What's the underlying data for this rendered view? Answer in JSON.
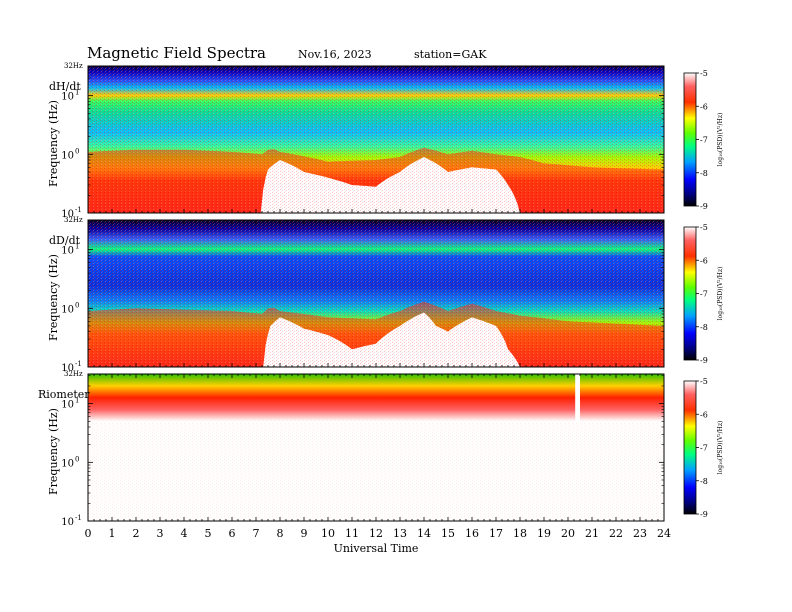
{
  "header": {
    "title": "Magnetic  Field  Spectra",
    "date": "Nov.16, 2023",
    "station": "station=GAK"
  },
  "chart_data": [
    {
      "type": "heatmap",
      "panel_label": "dH/dt",
      "top_label": "32Hz",
      "ylabel": "Frequency  (Hz)",
      "y_scale": "log",
      "ylim": [
        0.1,
        32
      ],
      "y_ticks": [
        {
          "base": "10",
          "exp": "-1"
        },
        {
          "base": "10",
          "exp": "0"
        },
        {
          "base": "10",
          "exp": "1"
        }
      ],
      "colorbar_label": "log₁₀(PSD)(V²/Hz)",
      "colorbar_range": [
        -9,
        -5
      ],
      "colorbar_ticks": [
        "-9",
        "-8",
        "-7",
        "-6",
        "-5"
      ],
      "noise_floor_hz_by_hour": [
        [
          0,
          1.1
        ],
        [
          2,
          1.2
        ],
        [
          4,
          1.2
        ],
        [
          6,
          1.1
        ],
        [
          7.3,
          1.0
        ],
        [
          7.6,
          1.3
        ],
        [
          8,
          1.1
        ],
        [
          10,
          0.75
        ],
        [
          12,
          0.8
        ],
        [
          13,
          0.9
        ],
        [
          14,
          1.3
        ],
        [
          15,
          1.0
        ],
        [
          16,
          1.15
        ],
        [
          17,
          1.0
        ],
        [
          18,
          0.9
        ],
        [
          19,
          0.7
        ],
        [
          21,
          0.6
        ],
        [
          24,
          0.55
        ]
      ],
      "white_region_top_hz_by_hour": [
        [
          0,
          0.1
        ],
        [
          7.2,
          0.1
        ],
        [
          7.5,
          0.55
        ],
        [
          8,
          0.8
        ],
        [
          9,
          0.5
        ],
        [
          10,
          0.4
        ],
        [
          11,
          0.3
        ],
        [
          12,
          0.28
        ],
        [
          13,
          0.5
        ],
        [
          14,
          0.9
        ],
        [
          14.5,
          0.7
        ],
        [
          15,
          0.5
        ],
        [
          16,
          0.6
        ],
        [
          17,
          0.55
        ],
        [
          17.5,
          0.3
        ],
        [
          18,
          0.1
        ],
        [
          24,
          0.1
        ]
      ]
    },
    {
      "type": "heatmap",
      "panel_label": "dD/dt",
      "top_label": "32Hz",
      "ylabel": "Frequency  (Hz)",
      "y_scale": "log",
      "ylim": [
        0.1,
        32
      ],
      "y_ticks": [
        {
          "base": "10",
          "exp": "-1"
        },
        {
          "base": "10",
          "exp": "0"
        },
        {
          "base": "10",
          "exp": "1"
        }
      ],
      "colorbar_label": "log₁₀(PSD)(V²/Hz)",
      "colorbar_range": [
        -9,
        -5
      ],
      "colorbar_ticks": [
        "-9",
        "-8",
        "-7",
        "-6",
        "-5"
      ],
      "noise_floor_hz_by_hour": [
        [
          0,
          0.9
        ],
        [
          2,
          1.0
        ],
        [
          4,
          0.95
        ],
        [
          6,
          0.9
        ],
        [
          7.3,
          0.8
        ],
        [
          7.6,
          1.1
        ],
        [
          8,
          0.9
        ],
        [
          10,
          0.7
        ],
        [
          12,
          0.65
        ],
        [
          13,
          0.9
        ],
        [
          14,
          1.3
        ],
        [
          15,
          0.9
        ],
        [
          16,
          1.2
        ],
        [
          17,
          0.9
        ],
        [
          18,
          0.75
        ],
        [
          20,
          0.6
        ],
        [
          24,
          0.5
        ]
      ],
      "white_region_top_hz_by_hour": [
        [
          0,
          0.1
        ],
        [
          7.3,
          0.1
        ],
        [
          7.6,
          0.5
        ],
        [
          8,
          0.7
        ],
        [
          9,
          0.45
        ],
        [
          10,
          0.35
        ],
        [
          11,
          0.2
        ],
        [
          12,
          0.25
        ],
        [
          13,
          0.5
        ],
        [
          14,
          0.85
        ],
        [
          14.5,
          0.5
        ],
        [
          15,
          0.4
        ],
        [
          16,
          0.7
        ],
        [
          17,
          0.5
        ],
        [
          17.5,
          0.2
        ],
        [
          18,
          0.1
        ],
        [
          24,
          0.1
        ]
      ]
    },
    {
      "type": "heatmap",
      "panel_label": "Riometer",
      "top_label": "32Hz",
      "ylabel": "Frequency  (Hz)",
      "y_scale": "log",
      "ylim": [
        0.1,
        32
      ],
      "y_ticks": [
        {
          "base": "10",
          "exp": "-1"
        },
        {
          "base": "10",
          "exp": "0"
        },
        {
          "base": "10",
          "exp": "1"
        }
      ],
      "colorbar_label": "log₁₀(PSD)(V²/Hz)",
      "colorbar_range": [
        -9,
        -5
      ],
      "colorbar_ticks": [
        "-9",
        "-8",
        "-7",
        "-6",
        "-5"
      ],
      "bands_hz": {
        "green_above": 20,
        "red_above": 9,
        "fade_to_white_below": 5
      },
      "gap_hours": [
        20.3,
        20.5
      ]
    }
  ],
  "x_axis": {
    "label": "Universal  Time",
    "xlim": [
      0,
      24
    ],
    "tick_labels": [
      "0",
      "1",
      "2",
      "3",
      "4",
      "5",
      "6",
      "7",
      "8",
      "9",
      "10",
      "11",
      "12",
      "13",
      "14",
      "15",
      "16",
      "17",
      "18",
      "19",
      "20",
      "21",
      "22",
      "23",
      "24"
    ]
  }
}
